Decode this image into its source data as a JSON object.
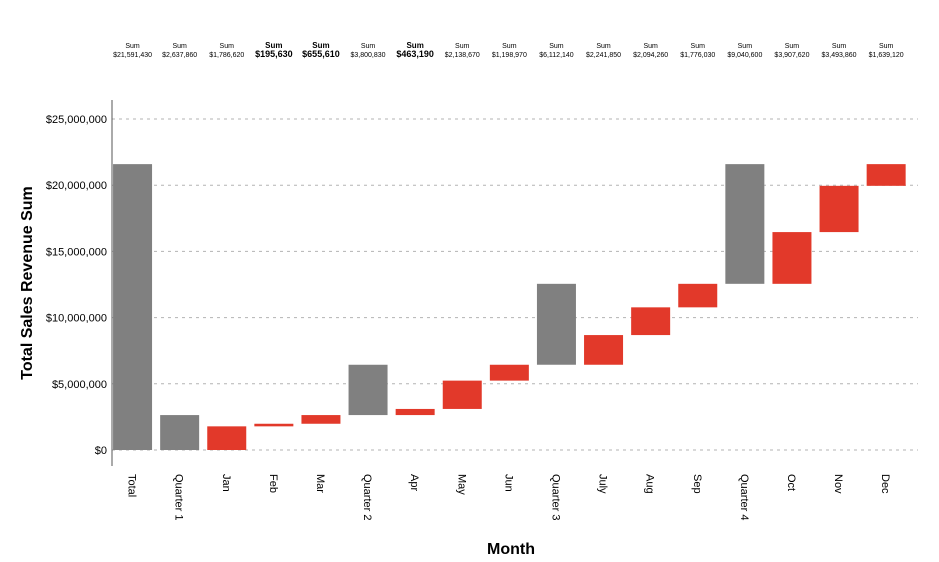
{
  "chart_data": {
    "type": "bar",
    "subtype": "waterfall",
    "xlabel": "Month",
    "ylabel": "Total Sales Revenue Sum",
    "ylim": [
      -1200000,
      26000000
    ],
    "yticks": [
      0,
      5000000,
      10000000,
      15000000,
      20000000,
      25000000
    ],
    "ytick_labels": [
      "$0",
      "$5,000,000",
      "$10,000,000",
      "$15,000,000",
      "$20,000,000",
      "$25,000,000"
    ],
    "grid": "horizontal-dashed",
    "colors": {
      "subtotal": "#808080",
      "increment": "#e2392a",
      "grid": "#b3b3b3",
      "axis": "#555555"
    },
    "sum_title": "Sum",
    "categories": [
      "Total",
      "Quarter 1",
      "Jan",
      "Feb",
      "Mar",
      "Quarter 2",
      "Apr",
      "May",
      "Jun",
      "Quarter 3",
      "July",
      "Aug",
      "Sep",
      "Quarter 4",
      "Oct",
      "Nov",
      "Dec"
    ],
    "bars": [
      {
        "label": "Total",
        "kind": "subtotal",
        "start": 0,
        "end": 21591430,
        "sum": "$21,591,430",
        "emph": false
      },
      {
        "label": "Quarter 1",
        "kind": "subtotal",
        "start": 0,
        "end": 2637860,
        "sum": "$2,637,860",
        "emph": false
      },
      {
        "label": "Jan",
        "kind": "increment",
        "start": 0,
        "end": 1786620,
        "sum": "$1,786,620",
        "emph": false
      },
      {
        "label": "Feb",
        "kind": "increment",
        "start": 1786620,
        "end": 1982250,
        "sum": "$195,630",
        "emph": true
      },
      {
        "label": "Mar",
        "kind": "increment",
        "start": 1982250,
        "end": 2637860,
        "sum": "$655,610",
        "emph": true
      },
      {
        "label": "Quarter 2",
        "kind": "subtotal",
        "start": 2637860,
        "end": 6438690,
        "sum": "$3,800,830",
        "emph": false
      },
      {
        "label": "Apr",
        "kind": "increment",
        "start": 2637860,
        "end": 3101050,
        "sum": "$463,190",
        "emph": true
      },
      {
        "label": "May",
        "kind": "increment",
        "start": 3101050,
        "end": 5239720,
        "sum": "$2,138,670",
        "emph": false
      },
      {
        "label": "Jun",
        "kind": "increment",
        "start": 5239720,
        "end": 6438690,
        "sum": "$1,198,970",
        "emph": false
      },
      {
        "label": "Quarter 3",
        "kind": "subtotal",
        "start": 6438690,
        "end": 12550830,
        "sum": "$6,112,140",
        "emph": false
      },
      {
        "label": "July",
        "kind": "increment",
        "start": 6438690,
        "end": 8680540,
        "sum": "$2,241,850",
        "emph": false
      },
      {
        "label": "Aug",
        "kind": "increment",
        "start": 8680540,
        "end": 10774800,
        "sum": "$2,094,260",
        "emph": false
      },
      {
        "label": "Sep",
        "kind": "increment",
        "start": 10774800,
        "end": 12550830,
        "sum": "$1,776,030",
        "emph": false
      },
      {
        "label": "Quarter 4",
        "kind": "subtotal",
        "start": 12550830,
        "end": 21591430,
        "sum": "$9,040,600",
        "emph": false
      },
      {
        "label": "Oct",
        "kind": "increment",
        "start": 12550830,
        "end": 16458450,
        "sum": "$3,907,620",
        "emph": false
      },
      {
        "label": "Nov",
        "kind": "increment",
        "start": 16458450,
        "end": 19952310,
        "sum": "$3,493,860",
        "emph": false
      },
      {
        "label": "Dec",
        "kind": "increment",
        "start": 19952310,
        "end": 21591430,
        "sum": "$1,639,120",
        "emph": false
      }
    ]
  }
}
